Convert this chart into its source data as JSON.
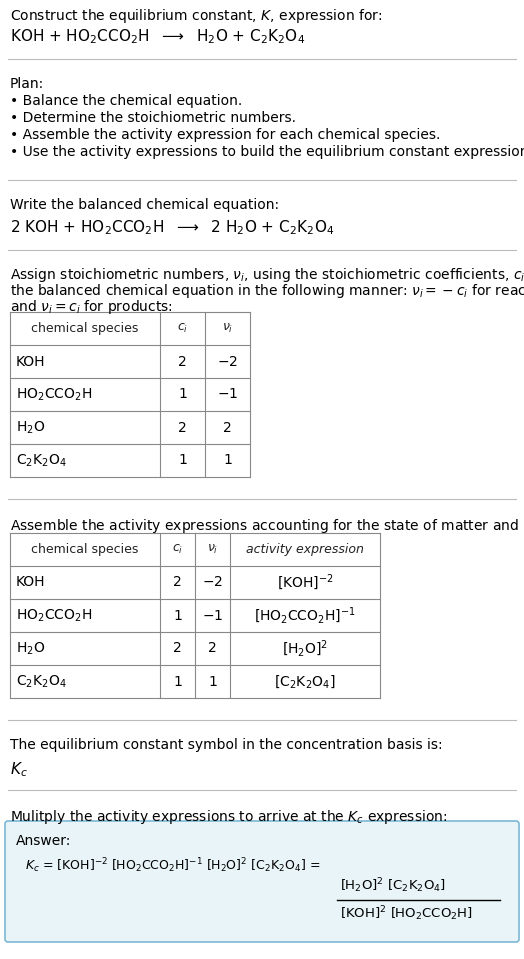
{
  "bg_color": "#ffffff",
  "text_color": "#000000",
  "table_border_color": "#888888",
  "answer_box_color": "#e8f4f8",
  "answer_box_border": "#7ab8d4",
  "section1_title": "Construct the equilibrium constant, $K$, expression for:",
  "section1_reaction": "KOH + HO$_2$CCO$_2$H  $\\longrightarrow$  H$_2$O + C$_2$K$_2$O$_4$",
  "section2_title": "Plan:",
  "section2_bullets": [
    "• Balance the chemical equation.",
    "• Determine the stoichiometric numbers.",
    "• Assemble the activity expression for each chemical species.",
    "• Use the activity expressions to build the equilibrium constant expression."
  ],
  "section3_title": "Write the balanced chemical equation:",
  "section3_reaction": "2 KOH + HO$_2$CCO$_2$H  $\\longrightarrow$  2 H$_2$O + C$_2$K$_2$O$_4$",
  "section4_title_l1": "Assign stoichiometric numbers, $\\nu_i$, using the stoichiometric coefficients, $c_i$, from",
  "section4_title_l2": "the balanced chemical equation in the following manner: $\\nu_i = -c_i$ for reactants",
  "section4_title_l3": "and $\\nu_i = c_i$ for products:",
  "table1_headers": [
    "chemical species",
    "$c_i$",
    "$\\nu_i$"
  ],
  "table1_rows": [
    [
      "KOH",
      "2",
      "$-2$"
    ],
    [
      "HO$_2$CCO$_2$H",
      "1",
      "$-1$"
    ],
    [
      "H$_2$O",
      "2",
      "2"
    ],
    [
      "C$_2$K$_2$O$_4$",
      "1",
      "1"
    ]
  ],
  "section5_title": "Assemble the activity expressions accounting for the state of matter and $\\nu_i$:",
  "table2_headers": [
    "chemical species",
    "$c_i$",
    "$\\nu_i$",
    "activity expression"
  ],
  "table2_rows": [
    [
      "KOH",
      "2",
      "$-2$",
      "[KOH]$^{-2}$"
    ],
    [
      "HO$_2$CCO$_2$H",
      "1",
      "$-1$",
      "[HO$_2$CCO$_2$H]$^{-1}$"
    ],
    [
      "H$_2$O",
      "2",
      "2",
      "[H$_2$O]$^2$"
    ],
    [
      "C$_2$K$_2$O$_4$",
      "1",
      "1",
      "[C$_2$K$_2$O$_4$]"
    ]
  ],
  "section6_title": "The equilibrium constant symbol in the concentration basis is:",
  "section6_symbol": "$K_c$",
  "section7_title": "Mulitply the activity expressions to arrive at the $K_c$ expression:",
  "answer_label": "Answer:",
  "answer_line1": "$K_c$ = [KOH]$^{-2}$ [HO$_2$CCO$_2$H]$^{-1}$ [H$_2$O]$^2$ [C$_2$K$_2$O$_4$] =",
  "answer_frac_num": "[H$_2$O]$^2$ [C$_2$K$_2$O$_4$]",
  "answer_frac_den": "[KOH]$^2$ [HO$_2$CCO$_2$H]"
}
